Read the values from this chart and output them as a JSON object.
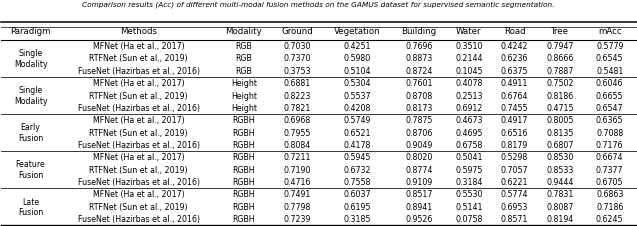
{
  "title": "Comparison results (Acc) of different multi-modal fusion methods on the GAMUS dataset for supervised semantic segmentation.",
  "columns": [
    "Paradigm",
    "Methods",
    "Modality",
    "Ground",
    "Vegetation",
    "Building",
    "Water",
    "Road",
    "Tree",
    "mAcc"
  ],
  "rows": [
    [
      "Single\nModality",
      "MFNet (Ha et al., 2017)",
      "RGB",
      "0.7030",
      "0.4251",
      "0.7696",
      "0.3510",
      "0.4242",
      "0.7947",
      "0.5779"
    ],
    [
      "Single\nModality",
      "RTFNet (Sun et al., 2019)",
      "RGB",
      "0.7370",
      "0.5980",
      "0.8873",
      "0.2144",
      "0.6236",
      "0.8666",
      "0.6545"
    ],
    [
      "Single\nModality",
      "FuseNet (Hazirbas et al., 2016)",
      "RGB",
      "0.3753",
      "0.5104",
      "0.8724",
      "0.1045",
      "0.6375",
      "0.7887",
      "0.5481"
    ],
    [
      "Single\nModality",
      "MFNet (Ha et al., 2017)",
      "Height",
      "0.6881",
      "0.5304",
      "0.7601",
      "0.4078",
      "0.4911",
      "0.7502",
      "0.6046"
    ],
    [
      "Single\nModality",
      "RTFNet (Sun et al., 2019)",
      "Height",
      "0.8223",
      "0.5537",
      "0.8708",
      "0.2513",
      "0.6764",
      "0.8186",
      "0.6655"
    ],
    [
      "Single\nModality",
      "FuseNet (Hazirbas et al., 2016)",
      "Height",
      "0.7821",
      "0.4208",
      "0.8173",
      "0.6912",
      "0.7455",
      "0.4715",
      "0.6547"
    ],
    [
      "Early\nFusion",
      "MFNet (Ha et al., 2017)",
      "RGBH",
      "0.6968",
      "0.5749",
      "0.7875",
      "0.4673",
      "0.4917",
      "0.8005",
      "0.6365"
    ],
    [
      "Early\nFusion",
      "RTFNet (Sun et al., 2019)",
      "RGBH",
      "0.7955",
      "0.6521",
      "0.8706",
      "0.4695",
      "0.6516",
      "0.8135",
      "0.7088"
    ],
    [
      "Early\nFusion",
      "FuseNet (Hazirbas et al., 2016)",
      "RGBH",
      "0.8084",
      "0.4178",
      "0.9049",
      "0.6758",
      "0.8179",
      "0.6807",
      "0.7176"
    ],
    [
      "Feature\nFusion",
      "MFNet (Ha et al., 2017)",
      "RGBH",
      "0.7211",
      "0.5945",
      "0.8020",
      "0.5041",
      "0.5298",
      "0.8530",
      "0.6674"
    ],
    [
      "Feature\nFusion",
      "RTFNet (Sun et al., 2019)",
      "RGBH",
      "0.7190",
      "0.6732",
      "0.8774",
      "0.5975",
      "0.7057",
      "0.8533",
      "0.7377"
    ],
    [
      "Feature\nFusion",
      "FuseNet (Hazirbas et al., 2016)",
      "RGBH",
      "0.4716",
      "0.7558",
      "0.9109",
      "0.3184",
      "0.6221",
      "0.9444",
      "0.6705"
    ],
    [
      "Late\nFusion",
      "MFNet (Ha et al., 2017)",
      "RGBH",
      "0.7491",
      "0.6037",
      "0.8517",
      "0.5530",
      "0.5774",
      "0.7831",
      "0.6863"
    ],
    [
      "Late\nFusion",
      "RTFNet (Sun et al., 2019)",
      "RGBH",
      "0.7798",
      "0.6195",
      "0.8941",
      "0.5141",
      "0.6953",
      "0.8087",
      "0.7186"
    ],
    [
      "Late\nFusion",
      "FuseNet (Hazirbas et al., 2016)",
      "RGBH",
      "0.7239",
      "0.3185",
      "0.9526",
      "0.0758",
      "0.8571",
      "0.8194",
      "0.6245"
    ]
  ],
  "paradigm_groups": [
    [
      0,
      2,
      "Single\nModality"
    ],
    [
      3,
      5,
      "Single\nModality"
    ],
    [
      6,
      8,
      "Early\nFusion"
    ],
    [
      9,
      11,
      "Feature\nFusion"
    ],
    [
      12,
      14,
      "Late\nFusion"
    ]
  ],
  "citation_color": "#4472C4",
  "header_fs": 6.2,
  "body_fs": 5.7,
  "title_fs": 5.3
}
